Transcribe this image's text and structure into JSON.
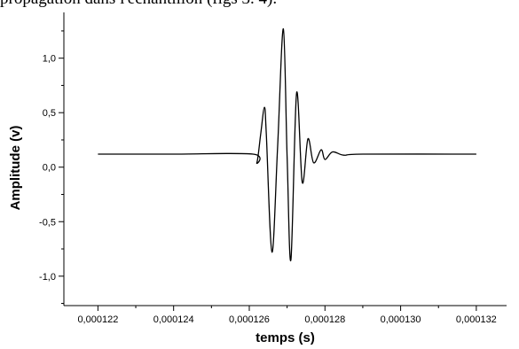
{
  "page": {
    "caption_fragment": "propagation dans l'échantillon (figs 3. 4)."
  },
  "chart_data": {
    "type": "line",
    "title": "",
    "xlabel": "temps (s)",
    "ylabel": "Amplitude (v)",
    "xlim": [
      0.0001211,
      0.0001328
    ],
    "ylim": [
      -1.27,
      1.42
    ],
    "x_ticks": [
      0.000122,
      0.000124,
      0.000126,
      0.000128,
      0.00013,
      0.000132
    ],
    "x_tick_labels": [
      "0,000122",
      "0,000124",
      "0,000126",
      "0,000128",
      "0,000130",
      "0,000132"
    ],
    "y_ticks": [
      -1.0,
      -0.5,
      0.0,
      0.5,
      1.0
    ],
    "y_tick_labels": [
      "-1,0",
      "-0,5",
      "0,0",
      "0,5",
      "1,0"
    ],
    "grid": false,
    "legend": "none",
    "line_color": "#000000",
    "series": [
      {
        "x": [
          0.000122,
          0.000124,
          0.0001261,
          0.0001262,
          0.0001263,
          0.0001264,
          0.00012645,
          0.0001266,
          0.00012675,
          0.0001269,
          0.000127,
          0.0001271,
          0.00012725,
          0.0001274,
          0.00012755,
          0.0001277,
          0.0001279,
          0.000128,
          0.0001282,
          0.0001285,
          0.000129,
          0.000132
        ],
        "y": [
          0.12,
          0.12,
          0.12,
          0.04,
          0.3,
          0.55,
          0.3,
          -0.78,
          0.2,
          1.27,
          0.1,
          -0.85,
          0.68,
          -0.14,
          0.26,
          0.04,
          0.16,
          0.07,
          0.14,
          0.11,
          0.12,
          0.12
        ]
      }
    ]
  }
}
